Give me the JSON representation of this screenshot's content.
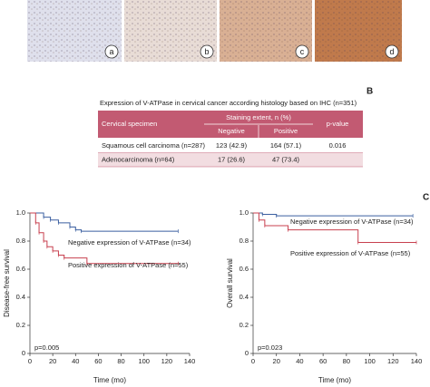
{
  "image_labels": [
    "a",
    "b",
    "c",
    "d"
  ],
  "panel_labels": [
    "B",
    "C"
  ],
  "table": {
    "title": "Expression of V-ATPase in cervical cancer according histology based on IHC (n=351)",
    "header": {
      "specimen": "Cervical specimen",
      "staining": "Staining extent, n (%)",
      "negative": "Negative",
      "positive": "Positive",
      "p_value": "p-value"
    },
    "rows": [
      [
        "Squamous cell carcinoma (n=287)",
        "123 (42.9)",
        "164 (57.1)",
        "0.016"
      ],
      [
        "Adenocarcinoma (n=64)",
        "17 (26.6)",
        "47 (73.4)"
      ]
    ]
  },
  "chart_data": [
    {
      "type": "line",
      "step": true,
      "y_label": "Disease-free survival",
      "x_label": "Time (mo)",
      "annotation": "p=0.005",
      "xlim": [
        0,
        140
      ],
      "xticks": [
        0,
        20,
        40,
        60,
        80,
        100,
        120,
        140
      ],
      "ylim": [
        0,
        1
      ],
      "yticks": [
        0,
        0.2,
        0.4,
        0.6,
        0.8,
        {
          "value": 1,
          "label": "1.0"
        }
      ],
      "series": [
        {
          "name": "Negative expression of V-ATPase (n=34)",
          "color": "#3b5fa0",
          "x": [
            0,
            12,
            18,
            25,
            35,
            40,
            45,
            130
          ],
          "values": [
            1,
            0.97,
            0.95,
            0.93,
            0.9,
            0.88,
            0.87,
            0.87
          ]
        },
        {
          "name": "Positive expression of V-ATPase (n=55)",
          "color": "#c8404f",
          "x": [
            0,
            5,
            8,
            12,
            15,
            20,
            25,
            30,
            50,
            130
          ],
          "values": [
            1,
            0.93,
            0.86,
            0.8,
            0.76,
            0.73,
            0.7,
            0.68,
            0.64,
            0.64
          ]
        }
      ]
    },
    {
      "type": "line",
      "step": true,
      "y_label": "Overall survival",
      "x_label": "Time (mo)",
      "annotation": "p=0.023",
      "xlim": [
        0,
        140
      ],
      "xticks": [
        0,
        20,
        40,
        60,
        80,
        100,
        120,
        140
      ],
      "ylim": [
        0,
        1
      ],
      "yticks": [
        0,
        0.2,
        0.4,
        0.6,
        0.8,
        {
          "value": 1,
          "label": "1.0"
        }
      ],
      "series": [
        {
          "name": "Negative expression of V-ATPase (n=34)",
          "color": "#3b5fa0",
          "x": [
            0,
            8,
            20,
            137
          ],
          "values": [
            1,
            0.99,
            0.98,
            0.98
          ]
        },
        {
          "name": "Positive expression of V-ATPase (n=55)",
          "color": "#c8404f",
          "x": [
            0,
            5,
            10,
            30,
            90,
            140
          ],
          "values": [
            1,
            0.95,
            0.91,
            0.88,
            0.79,
            0.79
          ]
        }
      ]
    }
  ]
}
